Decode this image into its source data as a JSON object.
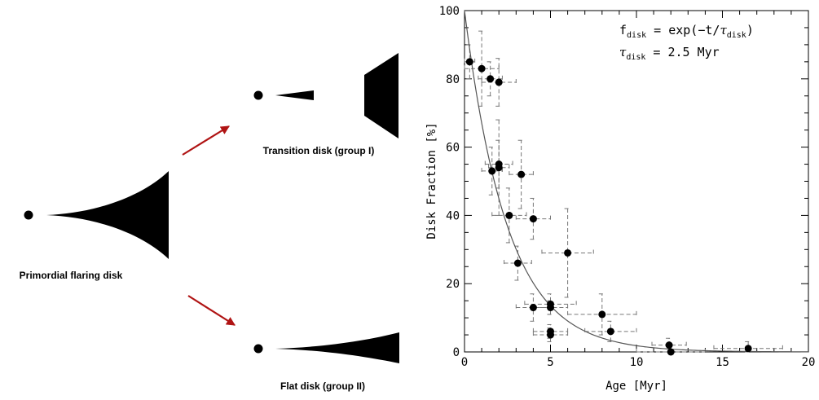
{
  "diagram": {
    "stages": [
      {
        "id": "primordial",
        "label": "Primordial flaring disk"
      },
      {
        "id": "transition",
        "label": "Transition disk (group I)"
      },
      {
        "id": "flat",
        "label": "Flat disk (group II)"
      }
    ],
    "arrow_color": "#b01414"
  },
  "chart_data": {
    "type": "scatter",
    "xlabel": "Age [Myr]",
    "ylabel": "Disk Fraction [%]",
    "xlim": [
      0,
      20
    ],
    "ylim": [
      0,
      100
    ],
    "xticks": [
      0,
      5,
      10,
      15,
      20
    ],
    "yticks": [
      0,
      20,
      40,
      60,
      80,
      100
    ],
    "grid": false,
    "annotation": {
      "line1": {
        "f": "f",
        "f_sub": "disk",
        "eq": " = exp(−t/",
        "tau": "τ",
        "tau_sub": "disk",
        "close": ")"
      },
      "line2": {
        "tau": "τ",
        "tau_sub": "disk",
        "eq": " = 2.5 Myr"
      }
    },
    "fit": {
      "function": "exp",
      "amplitude": 100,
      "tau": 2.5,
      "color": "#555555"
    },
    "points": [
      {
        "x": 0.3,
        "y": 85,
        "xerr": 0.3,
        "yerr": 5
      },
      {
        "x": 1.0,
        "y": 83,
        "xerr": 1.0,
        "yerr": 11
      },
      {
        "x": 1.5,
        "y": 80,
        "xerr": 0.7,
        "yerr": 5
      },
      {
        "x": 2.0,
        "y": 79,
        "xerr": 1.0,
        "yerr": 7
      },
      {
        "x": 1.6,
        "y": 53,
        "xerr": 0.6,
        "yerr": 7
      },
      {
        "x": 2.0,
        "y": 55,
        "xerr": 0.8,
        "yerr": 7
      },
      {
        "x": 2.0,
        "y": 54,
        "xerr": 0.6,
        "yerr": 14
      },
      {
        "x": 3.3,
        "y": 52,
        "xerr": 0.7,
        "yerr": 10
      },
      {
        "x": 2.6,
        "y": 40,
        "xerr": 1.0,
        "yerr": 8
      },
      {
        "x": 4.0,
        "y": 39,
        "xerr": 1.0,
        "yerr": 6
      },
      {
        "x": 3.1,
        "y": 26,
        "xerr": 0.8,
        "yerr": 5
      },
      {
        "x": 6.0,
        "y": 29,
        "xerr": 1.5,
        "yerr": 13
      },
      {
        "x": 4.0,
        "y": 13,
        "xerr": 1.0,
        "yerr": 4
      },
      {
        "x": 5.0,
        "y": 14,
        "xerr": 1.5,
        "yerr": 3
      },
      {
        "x": 5.0,
        "y": 13,
        "xerr": 1.0,
        "yerr": 2
      },
      {
        "x": 5.0,
        "y": 6,
        "xerr": 1.0,
        "yerr": 2
      },
      {
        "x": 5.0,
        "y": 5,
        "xerr": 1.0,
        "yerr": 2
      },
      {
        "x": 8.0,
        "y": 11,
        "xerr": 2.0,
        "yerr": 6
      },
      {
        "x": 8.5,
        "y": 6,
        "xerr": 1.5,
        "yerr": 3
      },
      {
        "x": 11.9,
        "y": 2,
        "xerr": 1.0,
        "yerr": 2
      },
      {
        "x": 12.0,
        "y": 0,
        "xerr": 2.0,
        "yerr": 2
      },
      {
        "x": 16.5,
        "y": 1,
        "xerr": 2.0,
        "yerr": 2
      }
    ]
  }
}
